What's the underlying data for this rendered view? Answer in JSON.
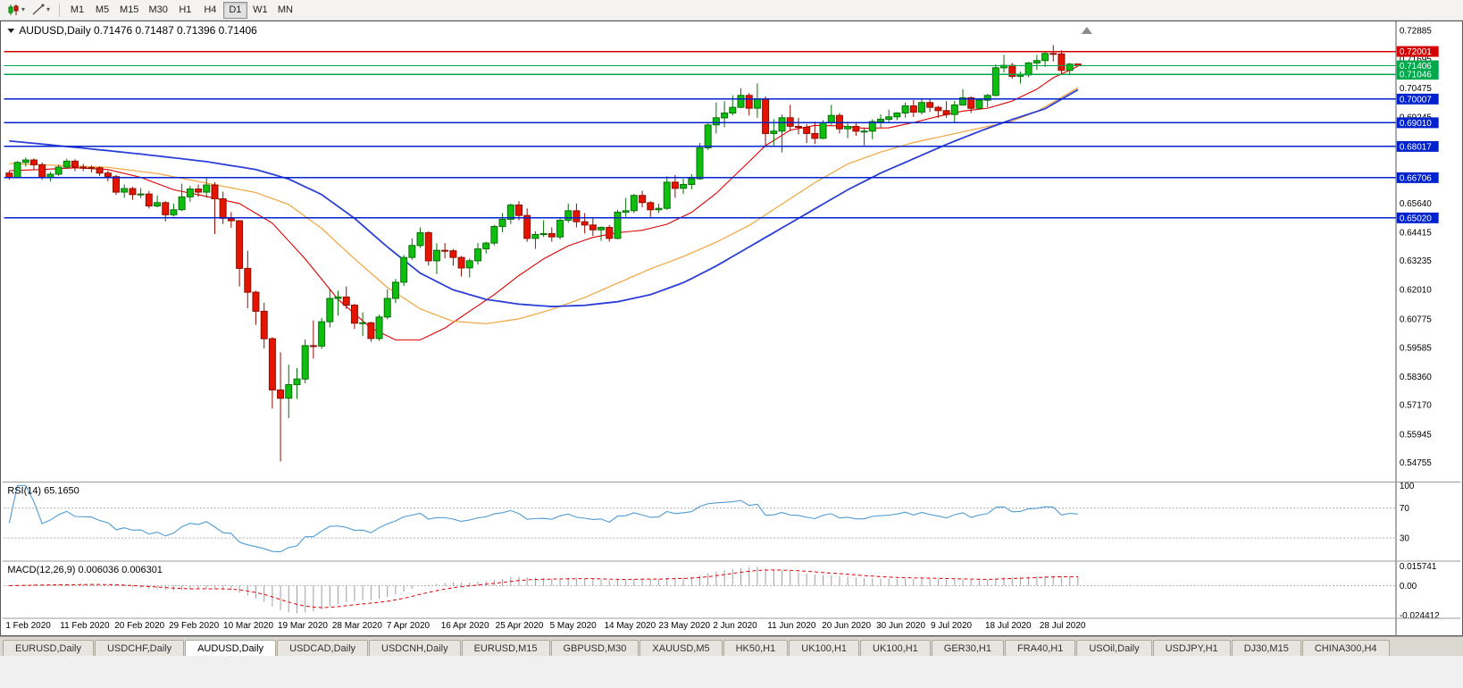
{
  "toolbar": {
    "timeframes": [
      "M1",
      "M5",
      "M15",
      "M30",
      "H1",
      "H4",
      "D1",
      "W1",
      "MN"
    ],
    "active_index": 6,
    "tool_icons": [
      "candlestick-chart-icon",
      "chart-objects-icon"
    ]
  },
  "chart": {
    "title_line": "AUDUSD,Daily 0.71476 0.71487 0.71396 0.71406",
    "symbol_period": "AUDUSD,Daily",
    "open": "0.71476",
    "high": "0.71487",
    "low": "0.71396",
    "close": "0.71406"
  },
  "indicators": {
    "rsi": {
      "label": "RSI(14) 65.1650",
      "value": "65.1650"
    },
    "macd": {
      "label": "MACD(12,26,9) 0.006036 0.006301",
      "values": "0.006036 0.006301"
    }
  },
  "tabs": {
    "items": [
      "EURUSD,Daily",
      "USDCHF,Daily",
      "AUDUSD,Daily",
      "USDCAD,Daily",
      "USDCNH,Daily",
      "EURUSD,M15",
      "GBPUSD,M30",
      "XAUUSD,M5",
      "HK50,H1",
      "UK100,H1",
      "UK100,H1",
      "GER30,H1",
      "FRA40,H1",
      "USOil,Daily",
      "USDJPY,H1",
      "DJ30,M15",
      "CHINA300,H4"
    ],
    "active_index": 2
  },
  "chart_data": {
    "type": "candlestick",
    "title": "AUDUSD,Daily",
    "price_scale": 0.0001,
    "ylim": [
      0.5401,
      0.7315
    ],
    "y_ticks": [
      "0.72885",
      "0.71695",
      "0.70475",
      "0.69245",
      "0.68025",
      "0.66800",
      "0.65640",
      "0.64415",
      "0.63235",
      "0.62010",
      "0.60775",
      "0.59585",
      "0.58360",
      "0.57170",
      "0.55945",
      "0.54755"
    ],
    "x_labels": [
      "1 Feb 2020",
      "11 Feb 2020",
      "20 Feb 2020",
      "29 Feb 2020",
      "10 Mar 2020",
      "19 Mar 2020",
      "28 Mar 2020",
      "7 Apr 2020",
      "16 Apr 2020",
      "25 Apr 2020",
      "5 May 2020",
      "14 May 2020",
      "23 May 2020",
      "2 Jun 2020",
      "11 Jun 2020",
      "20 Jun 2020",
      "30 Jun 2020",
      "9 Jul 2020",
      "18 Jul 2020",
      "28 Jul 2020"
    ],
    "candles": [
      [
        6690,
        6700,
        6662,
        6672
      ],
      [
        6672,
        6740,
        6668,
        6735
      ],
      [
        6735,
        6755,
        6718,
        6745
      ],
      [
        6745,
        6752,
        6705,
        6725
      ],
      [
        6725,
        6735,
        6662,
        6670
      ],
      [
        6670,
        6695,
        6655,
        6685
      ],
      [
        6685,
        6725,
        6678,
        6715
      ],
      [
        6715,
        6750,
        6708,
        6740
      ],
      [
        6740,
        6748,
        6698,
        6715
      ],
      [
        6715,
        6728,
        6698,
        6713
      ],
      [
        6713,
        6722,
        6693,
        6712
      ],
      [
        6712,
        6718,
        6678,
        6690
      ],
      [
        6690,
        6700,
        6655,
        6675
      ],
      [
        6675,
        6682,
        6598,
        6610
      ],
      [
        6610,
        6642,
        6586,
        6625
      ],
      [
        6625,
        6632,
        6578,
        6600
      ],
      [
        6600,
        6627,
        6585,
        6602
      ],
      [
        6602,
        6615,
        6542,
        6552
      ],
      [
        6552,
        6596,
        6545,
        6566
      ],
      [
        6566,
        6572,
        6487,
        6515
      ],
      [
        6515,
        6562,
        6508,
        6536
      ],
      [
        6536,
        6645,
        6530,
        6590
      ],
      [
        6590,
        6636,
        6570,
        6623
      ],
      [
        6623,
        6642,
        6590,
        6610
      ],
      [
        6610,
        6672,
        6586,
        6640
      ],
      [
        6640,
        6652,
        6434,
        6582
      ],
      [
        6582,
        6612,
        6476,
        6500
      ],
      [
        6500,
        6526,
        6460,
        6490
      ],
      [
        6490,
        6493,
        6214,
        6290
      ],
      [
        6290,
        6364,
        6123,
        6190
      ],
      [
        6190,
        6196,
        6053,
        6110
      ],
      [
        6110,
        6146,
        5954,
        5995
      ],
      [
        5995,
        6002,
        5702,
        5780
      ],
      [
        5780,
        5938,
        5480,
        5745
      ],
      [
        5745,
        5886,
        5662,
        5802
      ],
      [
        5802,
        5872,
        5742,
        5826
      ],
      [
        5826,
        5992,
        5808,
        5966
      ],
      [
        5966,
        6072,
        5912,
        5964
      ],
      [
        5964,
        6082,
        5952,
        6066
      ],
      [
        6066,
        6202,
        6042,
        6164
      ],
      [
        6164,
        6196,
        6092,
        6170
      ],
      [
        6170,
        6214,
        6120,
        6136
      ],
      [
        6136,
        6142,
        6036,
        6060
      ],
      [
        6060,
        6106,
        6006,
        6062
      ],
      [
        6062,
        6066,
        5982,
        5996
      ],
      [
        5996,
        6096,
        5986,
        6086
      ],
      [
        6086,
        6202,
        6076,
        6164
      ],
      [
        6164,
        6246,
        6144,
        6232
      ],
      [
        6232,
        6346,
        6216,
        6336
      ],
      [
        6336,
        6416,
        6326,
        6386
      ],
      [
        6386,
        6462,
        6376,
        6440
      ],
      [
        6440,
        6446,
        6302,
        6322
      ],
      [
        6322,
        6396,
        6266,
        6366
      ],
      [
        6366,
        6396,
        6332,
        6364
      ],
      [
        6364,
        6371,
        6302,
        6336
      ],
      [
        6336,
        6342,
        6256,
        6292
      ],
      [
        6292,
        6332,
        6252,
        6322
      ],
      [
        6322,
        6396,
        6306,
        6372
      ],
      [
        6372,
        6402,
        6352,
        6396
      ],
      [
        6396,
        6472,
        6386,
        6466
      ],
      [
        6466,
        6522,
        6442,
        6496
      ],
      [
        6496,
        6562,
        6476,
        6556
      ],
      [
        6556,
        6572,
        6492,
        6512
      ],
      [
        6512,
        6542,
        6402,
        6416
      ],
      [
        6416,
        6446,
        6372,
        6432
      ],
      [
        6432,
        6492,
        6422,
        6436
      ],
      [
        6436,
        6462,
        6402,
        6422
      ],
      [
        6422,
        6502,
        6412,
        6492
      ],
      [
        6492,
        6562,
        6482,
        6532
      ],
      [
        6532,
        6562,
        6462,
        6486
      ],
      [
        6486,
        6522,
        6436,
        6472
      ],
      [
        6472,
        6506,
        6426,
        6452
      ],
      [
        6452,
        6466,
        6406,
        6462
      ],
      [
        6462,
        6472,
        6402,
        6416
      ],
      [
        6416,
        6536,
        6412,
        6526
      ],
      [
        6526,
        6586,
        6506,
        6532
      ],
      [
        6532,
        6602,
        6522,
        6596
      ],
      [
        6596,
        6616,
        6546,
        6566
      ],
      [
        6566,
        6572,
        6506,
        6536
      ],
      [
        6536,
        6562,
        6522,
        6542
      ],
      [
        6542,
        6676,
        6536,
        6652
      ],
      [
        6652,
        6682,
        6586,
        6626
      ],
      [
        6626,
        6666,
        6602,
        6642
      ],
      [
        6642,
        6686,
        6622,
        6666
      ],
      [
        6666,
        6816,
        6662,
        6796
      ],
      [
        6796,
        6902,
        6786,
        6892
      ],
      [
        6892,
        6986,
        6856,
        6922
      ],
      [
        6922,
        6992,
        6882,
        6942
      ],
      [
        6942,
        7016,
        6932,
        6966
      ],
      [
        6966,
        7046,
        6962,
        7016
      ],
      [
        7016,
        7026,
        6932,
        6962
      ],
      [
        6962,
        7066,
        6922,
        7002
      ],
      [
        7002,
        7012,
        6802,
        6856
      ],
      [
        6856,
        6916,
        6802,
        6866
      ],
      [
        6866,
        6936,
        6776,
        6922
      ],
      [
        6922,
        6976,
        6866,
        6886
      ],
      [
        6886,
        6922,
        6852,
        6882
      ],
      [
        6882,
        6896,
        6816,
        6856
      ],
      [
        6856,
        6906,
        6812,
        6836
      ],
      [
        6836,
        6912,
        6832,
        6902
      ],
      [
        6902,
        6976,
        6892,
        6932
      ],
      [
        6932,
        6942,
        6856,
        6876
      ],
      [
        6876,
        6906,
        6836,
        6886
      ],
      [
        6886,
        6902,
        6846,
        6866
      ],
      [
        6866,
        6882,
        6806,
        6866
      ],
      [
        6866,
        6916,
        6832,
        6906
      ],
      [
        6906,
        6936,
        6882,
        6916
      ],
      [
        6916,
        6956,
        6902,
        6926
      ],
      [
        6926,
        6946,
        6912,
        6942
      ],
      [
        6942,
        6986,
        6922,
        6972
      ],
      [
        6972,
        6996,
        6926,
        6946
      ],
      [
        6946,
        7002,
        6936,
        6986
      ],
      [
        6986,
        7002,
        6946,
        6966
      ],
      [
        6966,
        6972,
        6922,
        6952
      ],
      [
        6952,
        6992,
        6922,
        6936
      ],
      [
        6936,
        6992,
        6902,
        6976
      ],
      [
        6976,
        7042,
        6972,
        7006
      ],
      [
        7006,
        7012,
        6942,
        6962
      ],
      [
        6962,
        7002,
        6956,
        6996
      ],
      [
        6996,
        7022,
        6966,
        7016
      ],
      [
        7016,
        7146,
        7012,
        7132
      ],
      [
        7132,
        7186,
        7112,
        7142
      ],
      [
        7142,
        7152,
        7086,
        7096
      ],
      [
        7096,
        7116,
        7066,
        7102
      ],
      [
        7102,
        7156,
        7092,
        7152
      ],
      [
        7152,
        7186,
        7122,
        7162
      ],
      [
        7162,
        7202,
        7136,
        7192
      ],
      [
        7192,
        7227,
        7158,
        7190
      ],
      [
        7190,
        7205,
        7103,
        7121
      ],
      [
        7121,
        7152,
        7100,
        7147
      ],
      [
        7147.6,
        7148.7,
        7139.6,
        7140.6
      ]
    ],
    "candle_colors": {
      "up_fill": "#0FBF0F",
      "up_stroke": "#067006",
      "down_fill": "#E51400",
      "down_stroke": "#8F0D00"
    },
    "moving_averages": [
      {
        "name": "ma-fast-red",
        "color": "#E00000",
        "width": 1.1,
        "points": [
          [
            0,
            6700
          ],
          [
            4,
            6705
          ],
          [
            8,
            6712
          ],
          [
            12,
            6705
          ],
          [
            16,
            6672
          ],
          [
            20,
            6620
          ],
          [
            24,
            6592
          ],
          [
            28,
            6562
          ],
          [
            32,
            6480
          ],
          [
            36,
            6330
          ],
          [
            40,
            6160
          ],
          [
            44,
            6040
          ],
          [
            47,
            5990
          ],
          [
            50,
            5990
          ],
          [
            53,
            6040
          ],
          [
            56,
            6110
          ],
          [
            59,
            6180
          ],
          [
            62,
            6260
          ],
          [
            65,
            6330
          ],
          [
            68,
            6385
          ],
          [
            71,
            6420
          ],
          [
            74,
            6440
          ],
          [
            77,
            6450
          ],
          [
            80,
            6475
          ],
          [
            83,
            6525
          ],
          [
            86,
            6605
          ],
          [
            89,
            6705
          ],
          [
            92,
            6805
          ],
          [
            95,
            6870
          ],
          [
            98,
            6890
          ],
          [
            101,
            6888
          ],
          [
            104,
            6878
          ],
          [
            107,
            6880
          ],
          [
            110,
            6902
          ],
          [
            113,
            6928
          ],
          [
            116,
            6950
          ],
          [
            119,
            6962
          ],
          [
            122,
            6992
          ],
          [
            125,
            7042
          ],
          [
            127,
            7090
          ],
          [
            130,
            7138
          ]
        ]
      },
      {
        "name": "ma-medium-orange",
        "color": "#F2A43C",
        "width": 1.2,
        "points": [
          [
            0,
            6730
          ],
          [
            6,
            6722
          ],
          [
            12,
            6714
          ],
          [
            18,
            6688
          ],
          [
            24,
            6648
          ],
          [
            30,
            6608
          ],
          [
            34,
            6558
          ],
          [
            38,
            6458
          ],
          [
            42,
            6330
          ],
          [
            46,
            6210
          ],
          [
            50,
            6120
          ],
          [
            54,
            6068
          ],
          [
            58,
            6058
          ],
          [
            62,
            6078
          ],
          [
            66,
            6118
          ],
          [
            70,
            6168
          ],
          [
            74,
            6228
          ],
          [
            78,
            6288
          ],
          [
            82,
            6340
          ],
          [
            86,
            6400
          ],
          [
            90,
            6470
          ],
          [
            94,
            6560
          ],
          [
            98,
            6650
          ],
          [
            102,
            6728
          ],
          [
            106,
            6778
          ],
          [
            110,
            6818
          ],
          [
            114,
            6848
          ],
          [
            118,
            6878
          ],
          [
            122,
            6908
          ],
          [
            125,
            6948
          ],
          [
            127,
            6988
          ],
          [
            130,
            7048
          ]
        ]
      },
      {
        "name": "ma-slow-blue",
        "color": "#2B3FD6",
        "width": 1.8,
        "points": [
          [
            0,
            6825
          ],
          [
            8,
            6798
          ],
          [
            16,
            6770
          ],
          [
            24,
            6738
          ],
          [
            30,
            6705
          ],
          [
            34,
            6665
          ],
          [
            38,
            6600
          ],
          [
            42,
            6500
          ],
          [
            46,
            6380
          ],
          [
            50,
            6270
          ],
          [
            54,
            6200
          ],
          [
            58,
            6160
          ],
          [
            62,
            6140
          ],
          [
            66,
            6130
          ],
          [
            70,
            6135
          ],
          [
            74,
            6150
          ],
          [
            78,
            6180
          ],
          [
            82,
            6230
          ],
          [
            86,
            6300
          ],
          [
            90,
            6380
          ],
          [
            94,
            6460
          ],
          [
            98,
            6540
          ],
          [
            102,
            6620
          ],
          [
            106,
            6690
          ],
          [
            110,
            6750
          ],
          [
            114,
            6810
          ],
          [
            118,
            6865
          ],
          [
            122,
            6915
          ],
          [
            126,
            6960
          ],
          [
            130,
            7040
          ]
        ]
      }
    ],
    "hlines": [
      {
        "price": 0.72001,
        "color": "#D40000",
        "label": "0.72001"
      },
      {
        "price": 0.71046,
        "color": "#00A84C",
        "label": "0.71046"
      },
      {
        "price": 0.70007,
        "color": "#0022CC",
        "label": "0.70007"
      },
      {
        "price": 0.6901,
        "color": "#0022CC",
        "label": "0.69010"
      },
      {
        "price": 0.68017,
        "color": "#0022CC",
        "label": "0.68017"
      },
      {
        "price": 0.66706,
        "color": "#0022CC",
        "label": "0.66706"
      },
      {
        "price": 0.6502,
        "color": "#0022CC",
        "label": "0.65020"
      }
    ],
    "bid": {
      "price": 0.71406,
      "label": "0.71406",
      "color": "#00A84C"
    },
    "rsi": {
      "period": 14,
      "color": "#4E9BD4",
      "levels": [
        100,
        70,
        30
      ],
      "last": 65.165
    },
    "macd": {
      "fast": 12,
      "slow": 26,
      "signal": 9,
      "range": [
        -0.024412,
        0.015741
      ],
      "scale_labels": [
        "0.015741",
        "0.00",
        "-0.024412"
      ],
      "hist_color": "#9E9E9E",
      "signal_color": "#E00000"
    }
  }
}
